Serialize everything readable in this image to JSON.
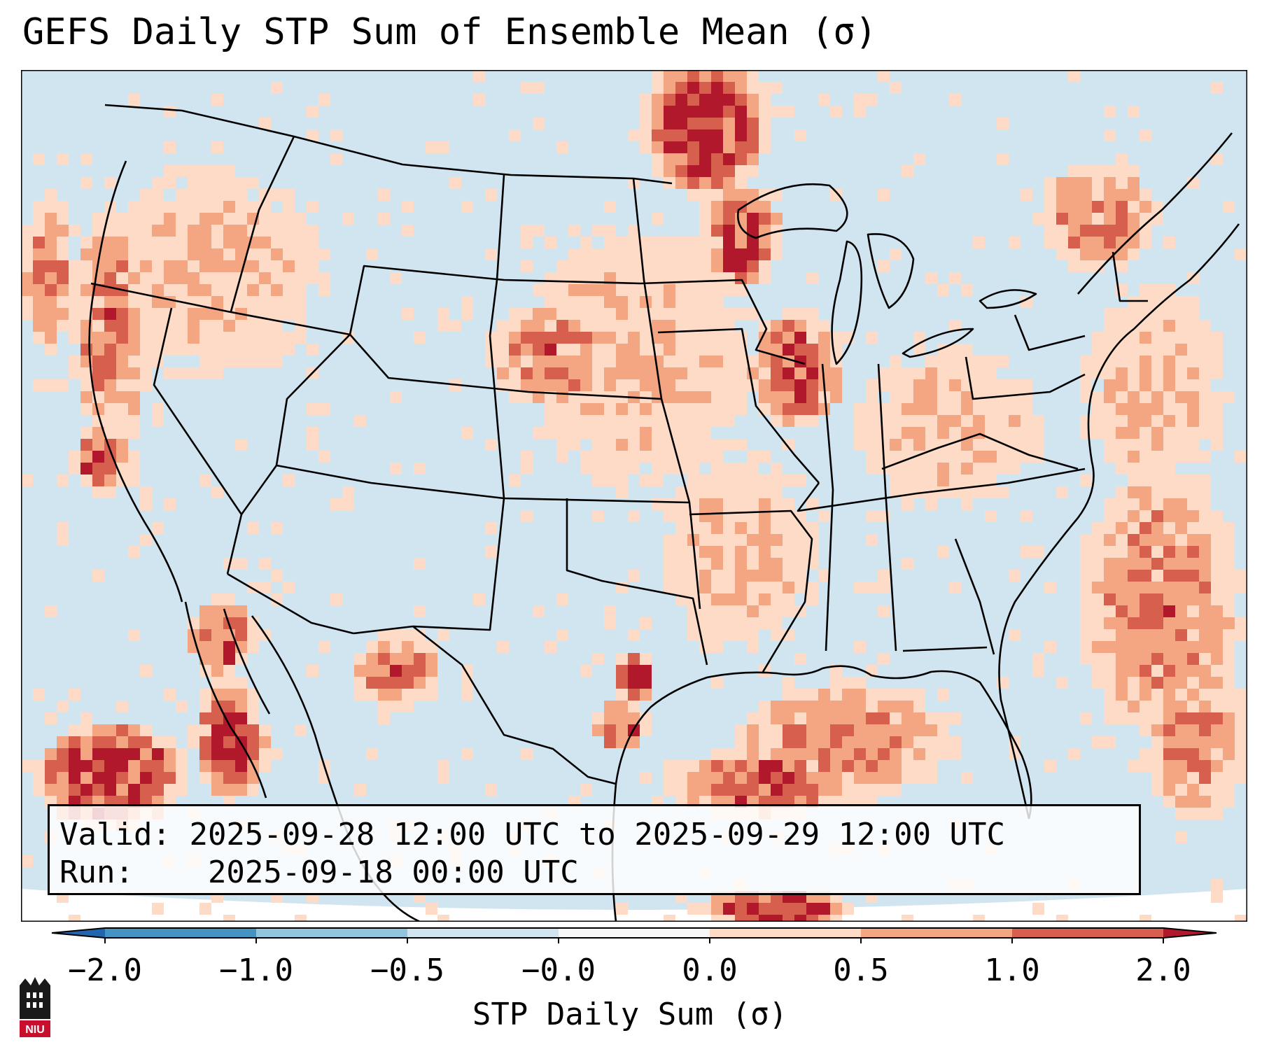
{
  "title": "GEFS Daily STP Sum of Ensemble Mean (σ)",
  "info": {
    "valid_label": "Valid:",
    "valid_value": "2025-09-28 12:00 UTC to 2025-09-29 12:00 UTC",
    "run_label": "Run:",
    "run_value": "2025-09-18 00:00 UTC"
  },
  "colorbar": {
    "label": "STP Daily Sum (σ)",
    "ticks": [
      "−2.0",
      "−1.0",
      "−0.5",
      "−0.0",
      "0.0",
      "0.5",
      "1.0",
      "2.0"
    ],
    "bins": [
      {
        "from": "<-2.0",
        "color": "#2166ac"
      },
      {
        "from": "-2.0",
        "to": "-1.0",
        "color": "#4393c3"
      },
      {
        "from": "-1.0",
        "to": "-0.5",
        "color": "#92c5de"
      },
      {
        "from": "-0.5",
        "to": "-0.0",
        "color": "#d1e5f0"
      },
      {
        "from": "-0.0",
        "to": "0.0",
        "color": "#f7f7f7"
      },
      {
        "from": "0.0",
        "to": "0.5",
        "color": "#fddbc7"
      },
      {
        "from": "0.5",
        "to": "1.0",
        "color": "#f4a582"
      },
      {
        "from": "1.0",
        "to": "2.0",
        "color": "#d6604d"
      },
      {
        "from": ">2.0",
        "color": "#b2182b"
      }
    ]
  },
  "map": {
    "background_color": "#d1e5f0",
    "regions": [
      {
        "name": "Pacific Northwest coast",
        "level": "0.5 to 1.0"
      },
      {
        "name": "Northern California coast",
        "level": "1.0 to 2.0"
      },
      {
        "name": "Upper Midwest / Minnesota",
        "level": ">2.0"
      },
      {
        "name": "Illinois / Iowa",
        "level": "1.0 to 2.0"
      },
      {
        "name": "Eastern Pacific off Baja",
        "level": ">2.0"
      },
      {
        "name": "Gulf of California",
        "level": ">2.0"
      },
      {
        "name": "Gulf of Mexico",
        "level": "0.5 to 1.0"
      },
      {
        "name": "Western Atlantic",
        "level": "0.5 to 1.0"
      },
      {
        "name": "New England",
        "level": "0.5 to 1.0"
      },
      {
        "name": "Western Caribbean",
        "level": ">2.0"
      }
    ]
  },
  "logo_text": "NIU"
}
